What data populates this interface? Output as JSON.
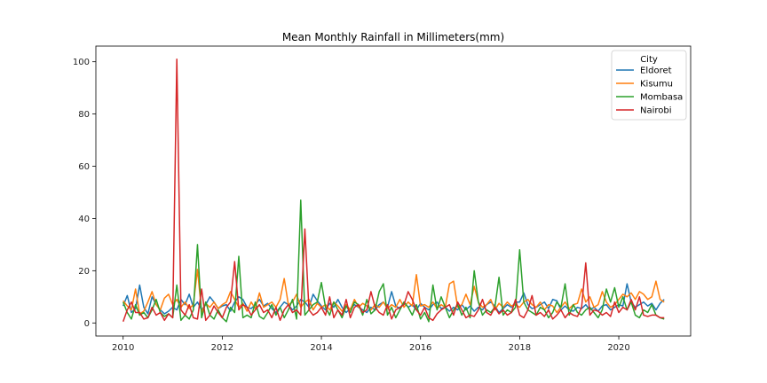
{
  "chart_data": {
    "type": "line",
    "title": "Mean Monthly Rainfall in Millimeters(mm)",
    "xlabel": "",
    "ylabel": "",
    "xlim": [
      2009.45,
      2021.45
    ],
    "ylim": [
      -5,
      106
    ],
    "x_ticks": [
      2010,
      2012,
      2014,
      2016,
      2018,
      2020
    ],
    "y_ticks": [
      0,
      20,
      40,
      60,
      80,
      100
    ],
    "grid": false,
    "legend": {
      "title": "City",
      "position": "top-right"
    },
    "x_start_year": 2010,
    "points_per_year": 12,
    "series": [
      {
        "name": "Eldoret",
        "color": "#1f77b4",
        "values": [
          6.5,
          10.5,
          4.0,
          5.5,
          14.5,
          6.0,
          3.5,
          10.0,
          7.0,
          5.0,
          3.5,
          4.5,
          6.0,
          5.0,
          9.0,
          7.0,
          11.0,
          6.0,
          8.0,
          5.0,
          7.0,
          10.0,
          8.0,
          5.5,
          6.5,
          7.0,
          4.5,
          8.0,
          10.0,
          9.0,
          6.0,
          5.5,
          7.0,
          9.0,
          6.5,
          7.5,
          5.5,
          4.0,
          6.0,
          8.0,
          7.0,
          5.0,
          6.5,
          9.0,
          8.0,
          6.0,
          11.0,
          8.5,
          6.5,
          5.0,
          7.5,
          6.0,
          9.0,
          6.0,
          4.0,
          5.5,
          7.0,
          6.0,
          5.0,
          4.0,
          6.0,
          5.0,
          7.0,
          8.0,
          6.0,
          12.0,
          6.5,
          5.5,
          8.0,
          6.0,
          7.0,
          5.0,
          7.5,
          6.0,
          5.0,
          7.0,
          8.0,
          5.5,
          6.0,
          4.5,
          6.0,
          5.0,
          7.0,
          5.0,
          6.5,
          4.5,
          6.0,
          5.0,
          7.0,
          8.0,
          6.5,
          4.0,
          5.5,
          7.0,
          6.0,
          8.0,
          8.0,
          11.5,
          7.0,
          5.5,
          6.0,
          7.0,
          8.0,
          5.5,
          9.0,
          8.5,
          5.0,
          6.5,
          5.0,
          4.5,
          6.0,
          5.5,
          7.0,
          5.0,
          6.0,
          4.5,
          6.5,
          7.0,
          5.0,
          6.0,
          7.0,
          6.5,
          15.0,
          8.0,
          6.0,
          7.0,
          8.0,
          6.5,
          7.5,
          5.0,
          7.5,
          9.0
        ]
      },
      {
        "name": "Kisumu",
        "color": "#ff7f0e",
        "values": [
          8.5,
          6.5,
          5.0,
          13.0,
          3.5,
          4.5,
          8.0,
          12.0,
          7.0,
          5.0,
          9.5,
          11.0,
          7.0,
          9.0,
          6.0,
          8.0,
          5.5,
          7.0,
          20.5,
          4.0,
          7.5,
          6.0,
          8.0,
          5.5,
          7.0,
          8.0,
          12.0,
          9.0,
          6.0,
          7.5,
          4.5,
          8.0,
          5.5,
          11.5,
          6.0,
          7.0,
          8.0,
          6.0,
          9.0,
          17.0,
          7.0,
          8.0,
          11.0,
          6.0,
          8.0,
          9.0,
          5.0,
          7.5,
          6.0,
          7.0,
          5.0,
          8.0,
          6.5,
          4.5,
          7.0,
          5.0,
          9.0,
          6.0,
          7.5,
          6.5,
          5.0,
          7.0,
          6.0,
          8.0,
          5.5,
          7.0,
          6.0,
          9.0,
          6.0,
          8.0,
          6.5,
          18.5,
          6.5,
          7.0,
          6.0,
          8.0,
          5.5,
          7.0,
          6.0,
          15.0,
          16.0,
          6.0,
          7.0,
          11.0,
          7.0,
          14.0,
          8.0,
          6.0,
          7.0,
          9.0,
          5.0,
          7.5,
          6.0,
          8.0,
          6.5,
          7.0,
          6.0,
          8.0,
          9.0,
          7.0,
          6.0,
          8.0,
          5.0,
          7.0,
          6.5,
          4.0,
          6.0,
          8.0,
          5.5,
          7.0,
          7.5,
          13.0,
          8.0,
          10.0,
          6.0,
          7.0,
          12.0,
          8.0,
          6.0,
          7.0,
          9.0,
          11.0,
          10.0,
          11.5,
          9.0,
          12.0,
          11.0,
          9.0,
          10.0,
          16.0,
          9.0,
          8.0
        ]
      },
      {
        "name": "Mombasa",
        "color": "#2ca02c",
        "values": [
          8.0,
          4.0,
          1.5,
          7.0,
          3.0,
          4.0,
          2.0,
          5.0,
          9.0,
          4.0,
          2.5,
          3.5,
          2.0,
          14.5,
          1.0,
          3.0,
          1.5,
          5.0,
          30.0,
          2.0,
          8.0,
          3.0,
          1.5,
          5.0,
          2.0,
          0.5,
          6.0,
          4.0,
          25.5,
          2.0,
          3.0,
          2.0,
          8.0,
          2.5,
          1.5,
          4.0,
          7.0,
          3.0,
          6.0,
          2.0,
          5.0,
          9.0,
          1.5,
          47.0,
          3.0,
          5.0,
          7.0,
          8.0,
          15.5,
          6.0,
          3.0,
          8.0,
          5.0,
          2.0,
          6.5,
          4.0,
          8.0,
          7.0,
          3.0,
          9.0,
          3.5,
          5.0,
          12.0,
          15.0,
          3.0,
          6.0,
          2.0,
          5.0,
          8.0,
          6.0,
          3.0,
          7.0,
          1.5,
          4.0,
          0.5,
          14.5,
          5.0,
          10.0,
          6.0,
          2.0,
          5.0,
          7.0,
          3.0,
          6.0,
          2.0,
          20.0,
          8.0,
          3.0,
          5.0,
          4.0,
          6.0,
          17.5,
          3.0,
          5.0,
          4.0,
          6.0,
          28.0,
          8.0,
          5.0,
          4.0,
          3.0,
          6.0,
          5.0,
          2.0,
          4.0,
          8.0,
          6.0,
          15.0,
          3.0,
          7.0,
          4.0,
          3.0,
          5.0,
          6.0,
          4.0,
          2.0,
          5.0,
          13.0,
          8.0,
          13.5,
          6.0,
          10.0,
          5.0,
          8.0,
          3.0,
          2.0,
          5.0,
          4.0,
          7.0,
          3.0,
          2.0,
          1.5
        ]
      },
      {
        "name": "Nairobi",
        "color": "#d62728",
        "values": [
          0.5,
          5.0,
          8.0,
          4.0,
          4.0,
          1.5,
          2.0,
          6.0,
          3.0,
          4.0,
          1.0,
          3.5,
          2.0,
          101.0,
          5.0,
          3.0,
          7.0,
          2.0,
          1.5,
          13.0,
          1.0,
          3.0,
          6.5,
          4.0,
          2.0,
          6.0,
          8.0,
          23.5,
          5.0,
          7.0,
          6.0,
          3.0,
          5.0,
          7.0,
          4.0,
          5.0,
          2.0,
          6.0,
          1.0,
          5.0,
          7.0,
          4.0,
          5.0,
          3.0,
          36.0,
          5.0,
          3.0,
          4.0,
          6.0,
          3.0,
          10.0,
          2.0,
          5.0,
          3.0,
          9.0,
          2.0,
          6.0,
          7.0,
          4.0,
          5.0,
          12.0,
          6.0,
          4.0,
          3.0,
          7.0,
          1.5,
          5.0,
          6.0,
          7.0,
          12.0,
          9.0,
          5.0,
          3.0,
          6.0,
          2.0,
          1.0,
          3.5,
          5.0,
          6.0,
          7.0,
          3.0,
          8.0,
          5.0,
          2.0,
          3.0,
          2.5,
          5.0,
          9.0,
          4.0,
          3.0,
          6.0,
          3.5,
          5.0,
          3.0,
          4.0,
          9.0,
          3.0,
          2.0,
          5.0,
          10.5,
          3.0,
          4.0,
          2.5,
          5.0,
          1.5,
          3.0,
          5.0,
          2.0,
          4.0,
          3.0,
          2.5,
          6.0,
          23.0,
          3.0,
          5.0,
          4.5,
          3.0,
          4.0,
          2.5,
          8.0,
          4.0,
          6.0,
          5.0,
          9.0,
          5.0,
          10.0,
          3.0,
          2.5,
          3.0,
          3.0,
          2.0,
          2.0
        ]
      }
    ]
  }
}
